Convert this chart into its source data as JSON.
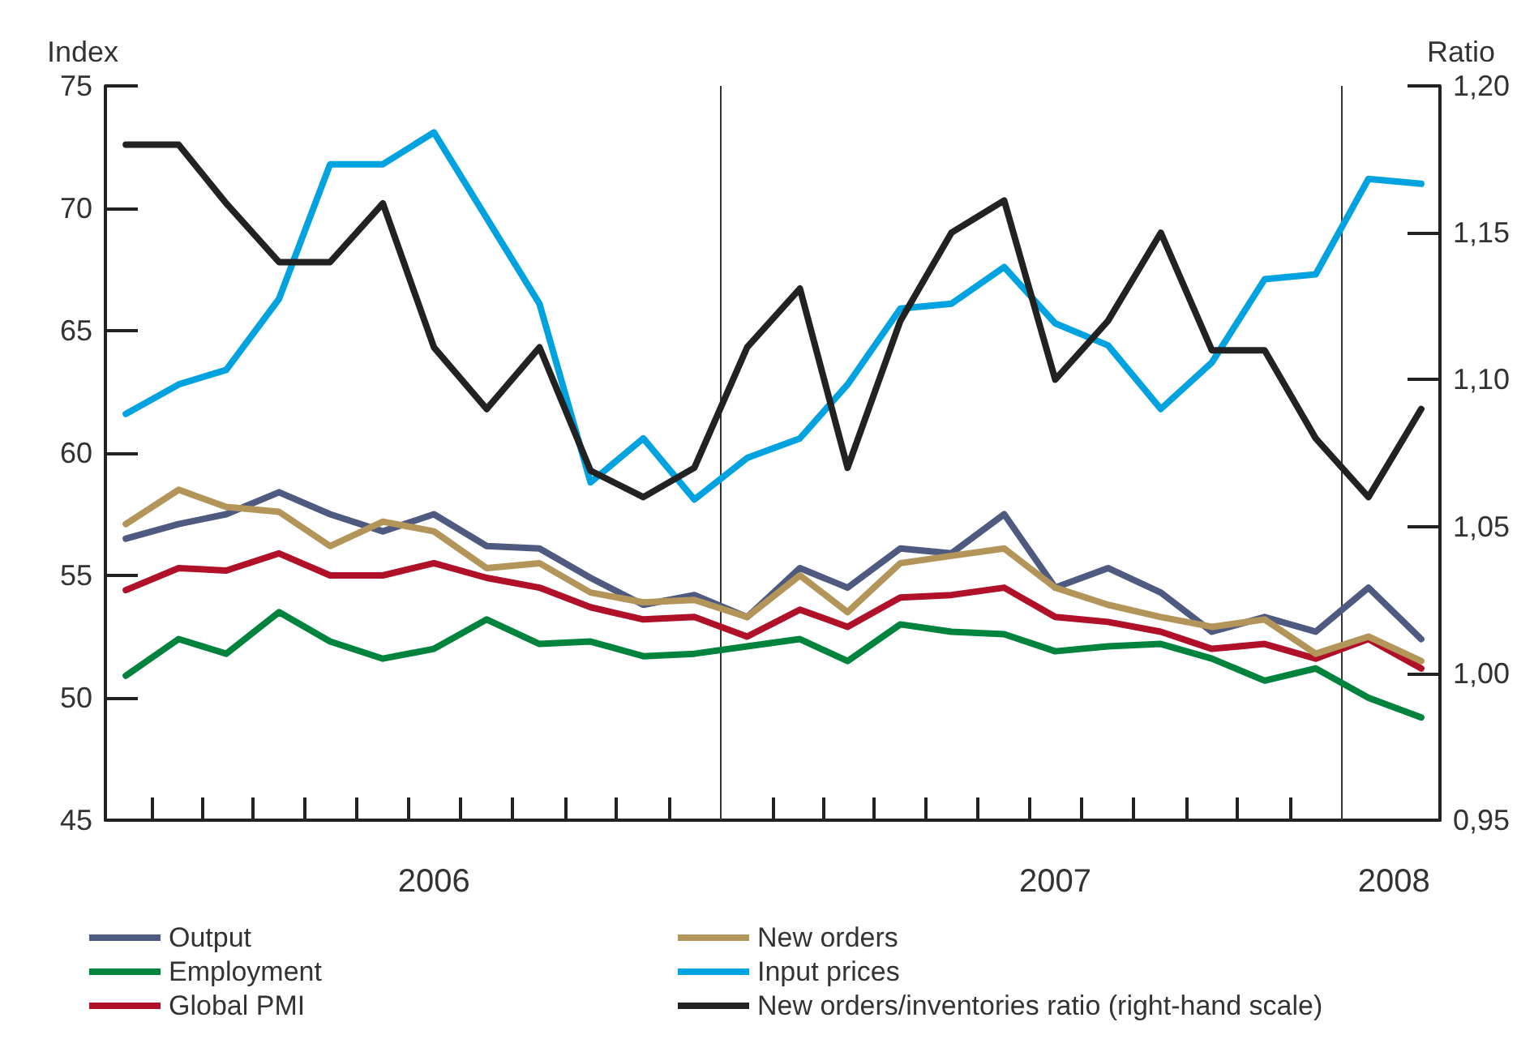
{
  "chart_data": {
    "type": "line",
    "ylabel": "Index",
    "y2label": "Ratio",
    "x": [
      "2006-01",
      "2006-02",
      "2006-03",
      "2006-04",
      "2006-05",
      "2006-06",
      "2006-07",
      "2006-08",
      "2006-09",
      "2006-10",
      "2006-11",
      "2006-12",
      "2007-01",
      "2007-02",
      "2007-03",
      "2007-04",
      "2007-05",
      "2007-06",
      "2007-07",
      "2007-08",
      "2007-09",
      "2007-10",
      "2007-11",
      "2007-12",
      "2008-01",
      "2008-02"
    ],
    "xlim": [
      "2005-12-20",
      "2008-02-12"
    ],
    "xticks": [
      {
        "value": "2006-01-16",
        "label": null
      },
      {
        "value": "2006-02-15",
        "label": null
      },
      {
        "value": "2006-03-16",
        "label": null
      },
      {
        "value": "2006-04-16",
        "label": null
      },
      {
        "value": "2006-05-16",
        "label": null
      },
      {
        "value": "2006-06-16",
        "label": null
      },
      {
        "value": "2006-07-01",
        "label": "2006"
      },
      {
        "value": "2006-07-16",
        "label": null
      },
      {
        "value": "2006-08-16",
        "label": null
      },
      {
        "value": "2006-09-16",
        "label": null
      },
      {
        "value": "2006-10-16",
        "label": null
      },
      {
        "value": "2006-11-16",
        "label": null
      },
      {
        "value": "2007-01-16",
        "label": null
      },
      {
        "value": "2007-02-15",
        "label": null
      },
      {
        "value": "2007-03-16",
        "label": null
      },
      {
        "value": "2007-04-16",
        "label": null
      },
      {
        "value": "2007-05-16",
        "label": null
      },
      {
        "value": "2007-06-16",
        "label": null
      },
      {
        "value": "2007-07-01",
        "label": "2007"
      },
      {
        "value": "2007-07-16",
        "label": null
      },
      {
        "value": "2007-08-16",
        "label": null
      },
      {
        "value": "2007-09-16",
        "label": null
      },
      {
        "value": "2007-10-16",
        "label": null
      },
      {
        "value": "2007-11-16",
        "label": null
      },
      {
        "value": "2008-01-16",
        "label": "2008"
      }
    ],
    "ylim": [
      45,
      75
    ],
    "yticks": [
      45,
      50,
      55,
      60,
      65,
      70,
      75
    ],
    "y2lim": [
      0.95,
      1.2
    ],
    "y2ticks": [
      {
        "value": 0.95,
        "label": "0,95"
      },
      {
        "value": 1.0,
        "label": "1,00"
      },
      {
        "value": 1.05,
        "label": "1,05"
      },
      {
        "value": 1.1,
        "label": "1,10"
      },
      {
        "value": 1.15,
        "label": "1,15"
      },
      {
        "value": 1.2,
        "label": "1,20"
      }
    ],
    "ref_lines": [
      {
        "axis": "x",
        "value": "2006-12-16",
        "label": null,
        "color": "#333333"
      },
      {
        "axis": "x",
        "value": "2007-12-16",
        "label": null,
        "color": "#333333"
      }
    ],
    "grid": false,
    "legend": "bottom",
    "marker": "none",
    "line_style": "solid",
    "series": [
      {
        "name": "Output",
        "color": "#4f5a80",
        "values": [
          56.5,
          57.1,
          57.5,
          58.4,
          57.5,
          56.8,
          57.5,
          56.2,
          56.1,
          54.9,
          53.8,
          54.2,
          53.3,
          55.3,
          54.5,
          56.1,
          55.9,
          57.5,
          54.5,
          55.3,
          54.3,
          52.7,
          53.3,
          52.7,
          54.5,
          52.4
        ]
      },
      {
        "name": "Employment",
        "color": "#00843d",
        "values": [
          50.9,
          52.4,
          51.8,
          53.5,
          52.3,
          51.6,
          52.0,
          53.2,
          52.2,
          52.3,
          51.7,
          51.8,
          52.1,
          52.4,
          51.5,
          53.0,
          52.7,
          52.6,
          51.9,
          52.1,
          52.2,
          51.6,
          50.7,
          51.2,
          50.0,
          49.2
        ]
      },
      {
        "name": "Global PMI",
        "color": "#b01028",
        "values": [
          54.4,
          55.3,
          55.2,
          55.9,
          55.0,
          55.0,
          55.5,
          54.9,
          54.5,
          53.7,
          53.2,
          53.3,
          52.5,
          53.6,
          52.9,
          54.1,
          54.2,
          54.5,
          53.3,
          53.1,
          52.7,
          52.0,
          52.2,
          51.6,
          52.4,
          51.2
        ]
      },
      {
        "name": "New orders",
        "color": "#b3955a",
        "values": [
          57.1,
          58.5,
          57.8,
          57.6,
          56.2,
          57.2,
          56.8,
          55.3,
          55.5,
          54.3,
          53.9,
          54.0,
          53.3,
          55.0,
          53.5,
          55.5,
          55.8,
          56.1,
          54.5,
          53.8,
          53.3,
          52.9,
          53.2,
          51.8,
          52.5,
          51.5
        ]
      },
      {
        "name": "Input prices",
        "color": "#00a3e0",
        "values": [
          61.6,
          62.8,
          63.4,
          66.3,
          71.8,
          71.8,
          73.1,
          69.6,
          66.1,
          58.8,
          60.6,
          58.1,
          59.8,
          60.6,
          62.8,
          65.9,
          66.1,
          67.6,
          65.3,
          64.4,
          61.8,
          63.7,
          67.1,
          67.3,
          71.2,
          71.0
        ]
      },
      {
        "name": "New orders/inventories ratio (right-hand scale)",
        "color": "#222222",
        "axis": "y2",
        "values": [
          1.18,
          1.18,
          1.16,
          1.14,
          1.14,
          1.16,
          1.111,
          1.09,
          1.111,
          1.069,
          1.06,
          1.07,
          1.111,
          1.131,
          1.07,
          1.12,
          1.15,
          1.161,
          1.1,
          1.12,
          1.15,
          1.11,
          1.11,
          1.08,
          1.06,
          1.09
        ]
      }
    ]
  }
}
